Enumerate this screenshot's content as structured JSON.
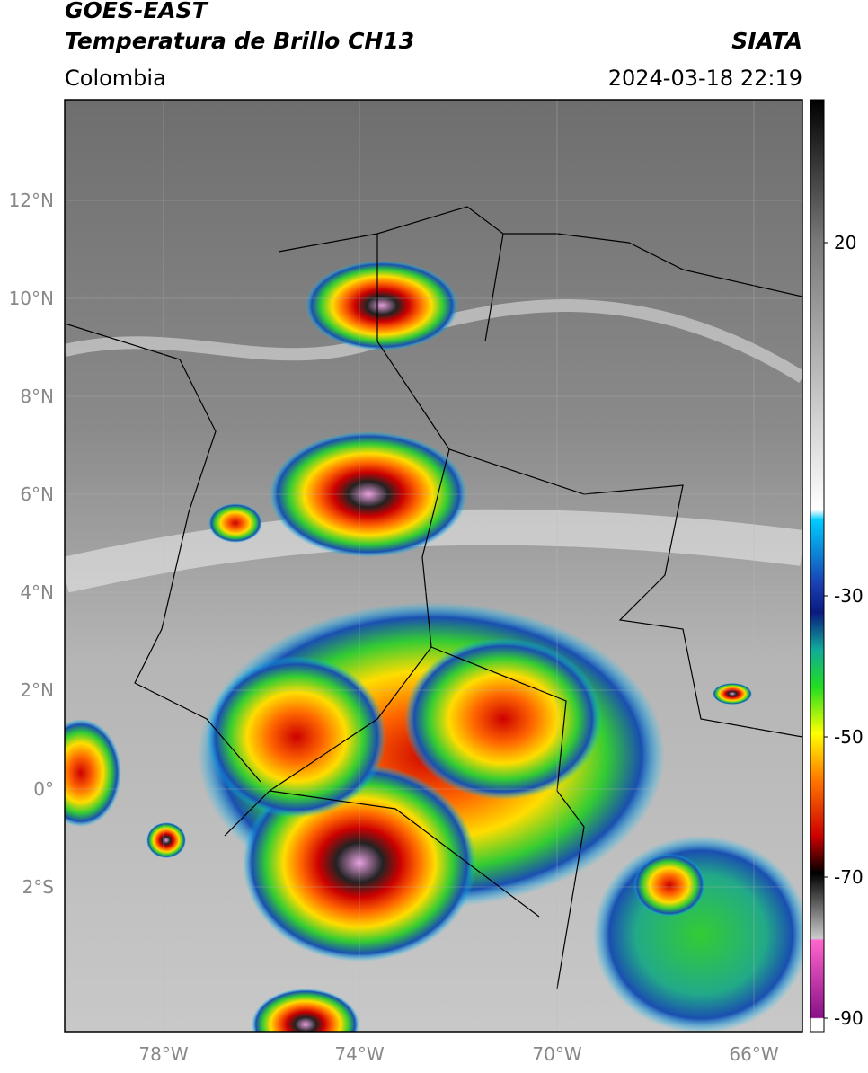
{
  "header": {
    "title": "GOES-EAST",
    "subtitle": "Temperatura de Brillo CH13",
    "region": "Colombia",
    "source": "SIATA",
    "datetime": "2024-03-18 22:19"
  },
  "map": {
    "lat_labels": [
      "12°N",
      "10°N",
      "8°N",
      "6°N",
      "4°N",
      "2°N",
      "0°",
      "2°S"
    ],
    "lon_labels": [
      "78°W",
      "74°W",
      "70°W",
      "66°W"
    ]
  },
  "colorbar": {
    "tick_labels": [
      "20",
      "-30",
      "-50",
      "-70",
      "-90"
    ]
  }
}
